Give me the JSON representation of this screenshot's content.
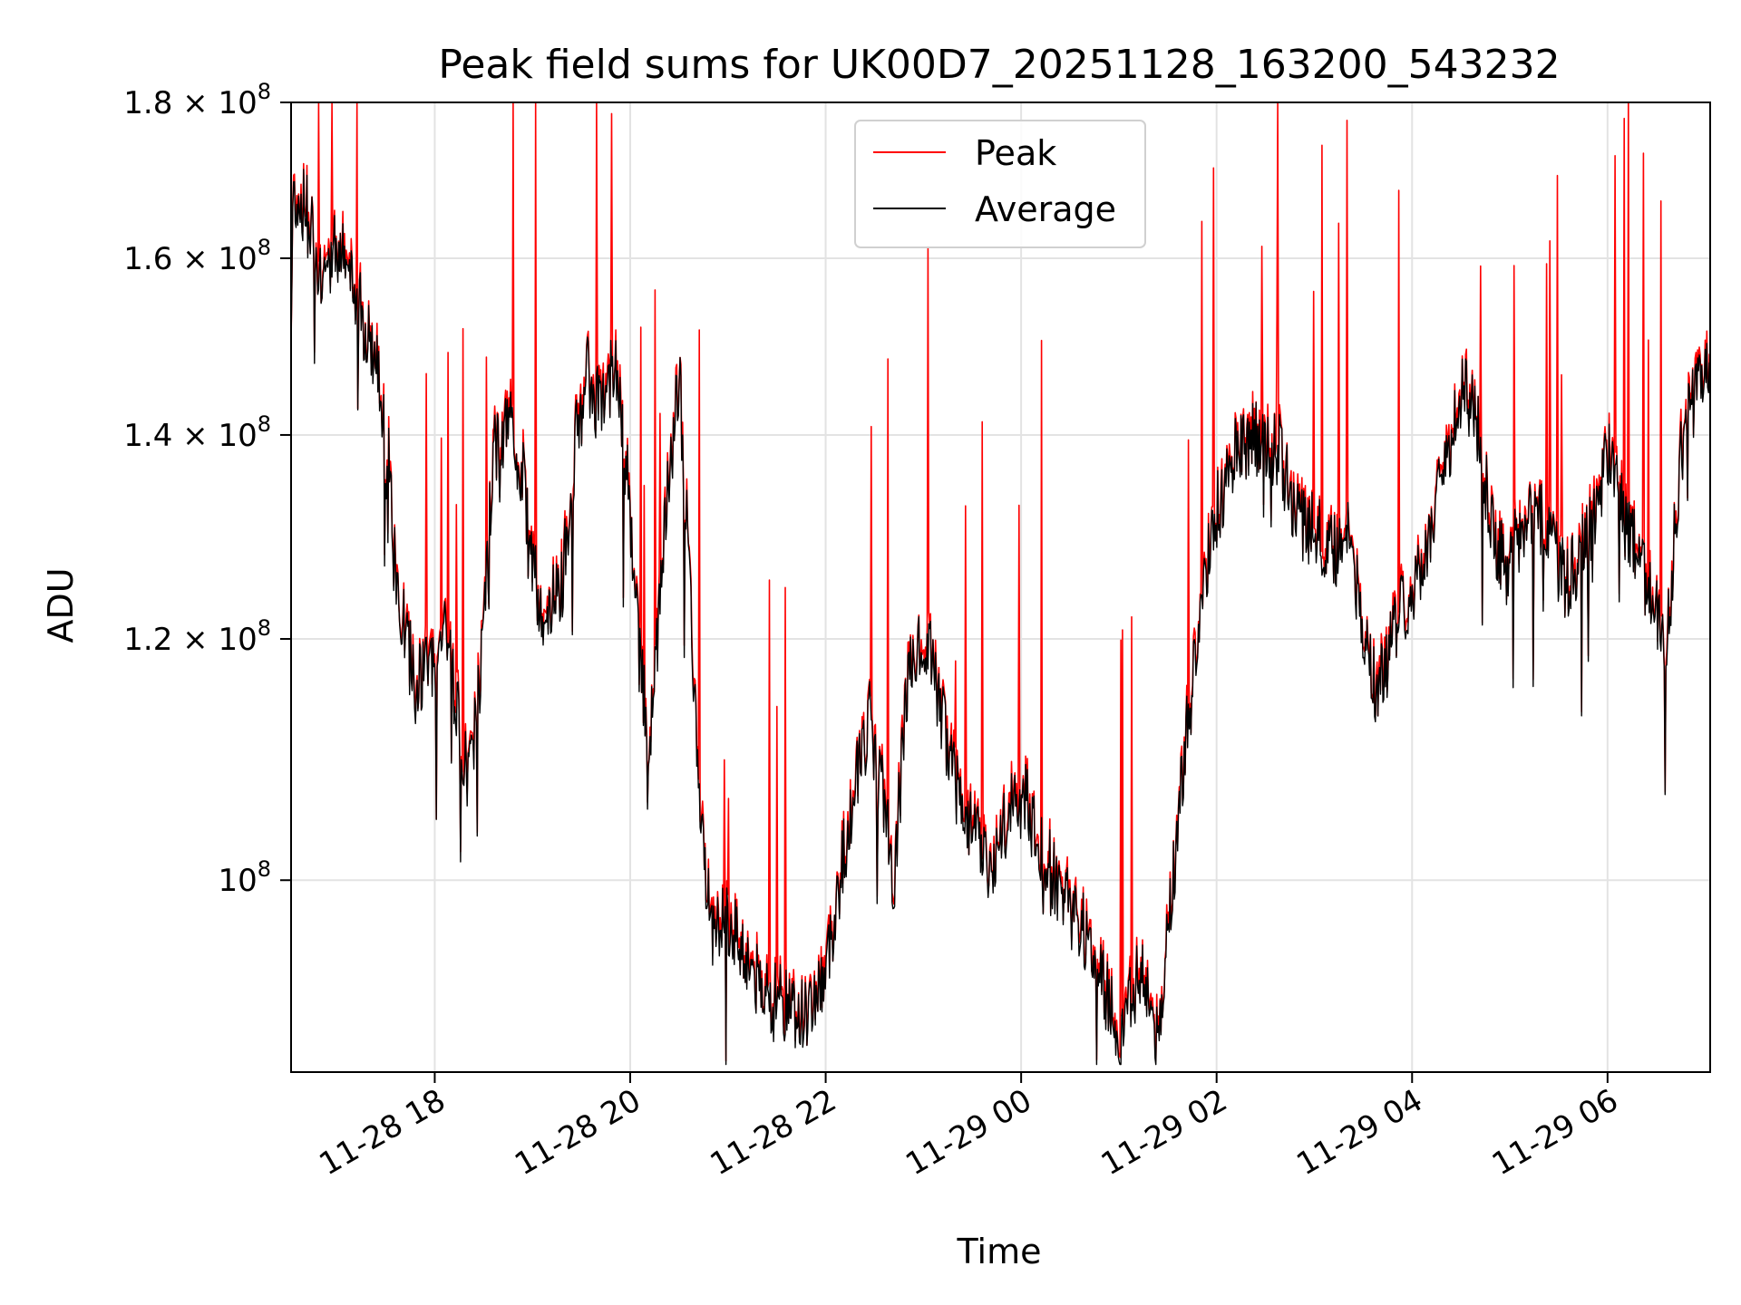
{
  "chart_data": {
    "type": "line",
    "title": "Peak field sums for UK00D7_20251128_163200_543232",
    "xlabel": "Time",
    "ylabel": "ADU",
    "yscale": "log",
    "ylim": [
      86500000,
      180000000
    ],
    "xlim_hours": [
      16.53,
      31.05
    ],
    "grid": true,
    "legend": {
      "location": "upper-center",
      "entries": [
        "Peak",
        "Average"
      ]
    },
    "colors": {
      "Peak": "#ff0000",
      "Average": "#000000"
    },
    "x_ticks": [
      {
        "hour": 18,
        "label": "11-28 18"
      },
      {
        "hour": 20,
        "label": "11-28 20"
      },
      {
        "hour": 22,
        "label": "11-28 22"
      },
      {
        "hour": 24,
        "label": "11-29 00"
      },
      {
        "hour": 26,
        "label": "11-29 02"
      },
      {
        "hour": 28,
        "label": "11-29 04"
      },
      {
        "hour": 30,
        "label": "11-29 06"
      }
    ],
    "y_ticks": [
      {
        "value": 100000000,
        "base": "10",
        "exp": "8",
        "mult": ""
      },
      {
        "value": 120000000,
        "base": "10",
        "exp": "8",
        "mult": "1.2 × "
      },
      {
        "value": 140000000,
        "base": "10",
        "exp": "8",
        "mult": "1.4 × "
      },
      {
        "value": 160000000,
        "base": "10",
        "exp": "8",
        "mult": "1.6 × "
      },
      {
        "value": 180000000,
        "base": "10",
        "exp": "8",
        "mult": "1.8 × "
      }
    ],
    "average_keypoints": [
      [
        16.53,
        150
      ],
      [
        16.55,
        168
      ],
      [
        16.7,
        166
      ],
      [
        16.85,
        158
      ],
      [
        17.0,
        162
      ],
      [
        17.2,
        155
      ],
      [
        17.35,
        150
      ],
      [
        17.5,
        142
      ],
      [
        17.6,
        125
      ],
      [
        17.8,
        116
      ],
      [
        18.0,
        118
      ],
      [
        18.1,
        122
      ],
      [
        18.2,
        115
      ],
      [
        18.35,
        108
      ],
      [
        18.5,
        120
      ],
      [
        18.6,
        138
      ],
      [
        18.75,
        142
      ],
      [
        18.9,
        136
      ],
      [
        19.0,
        128
      ],
      [
        19.1,
        122
      ],
      [
        19.3,
        125
      ],
      [
        19.45,
        140
      ],
      [
        19.55,
        147
      ],
      [
        19.7,
        142
      ],
      [
        19.85,
        148
      ],
      [
        20.0,
        132
      ],
      [
        20.1,
        118
      ],
      [
        20.2,
        110
      ],
      [
        20.35,
        130
      ],
      [
        20.5,
        146
      ],
      [
        20.6,
        128
      ],
      [
        20.7,
        105
      ],
      [
        20.85,
        96
      ],
      [
        21.0,
        97
      ],
      [
        21.2,
        94
      ],
      [
        21.4,
        92
      ],
      [
        21.6,
        91
      ],
      [
        21.8,
        90
      ],
      [
        22.0,
        93
      ],
      [
        22.15,
        100
      ],
      [
        22.3,
        108
      ],
      [
        22.45,
        113
      ],
      [
        22.6,
        106
      ],
      [
        22.7,
        100
      ],
      [
        22.85,
        118
      ],
      [
        23.0,
        121
      ],
      [
        23.15,
        115
      ],
      [
        23.3,
        108
      ],
      [
        23.5,
        104
      ],
      [
        23.65,
        101
      ],
      [
        23.8,
        103
      ],
      [
        23.9,
        106
      ],
      [
        24.05,
        106
      ],
      [
        24.2,
        103
      ],
      [
        24.35,
        100
      ],
      [
        24.5,
        98
      ],
      [
        24.65,
        96
      ],
      [
        24.8,
        93
      ],
      [
        25.0,
        89
      ],
      [
        25.1,
        92
      ],
      [
        25.25,
        93
      ],
      [
        25.4,
        88
      ],
      [
        25.55,
        100
      ],
      [
        25.7,
        112
      ],
      [
        25.9,
        127
      ],
      [
        26.0,
        132
      ],
      [
        26.2,
        139
      ],
      [
        26.45,
        140
      ],
      [
        26.65,
        138
      ],
      [
        26.8,
        132
      ],
      [
        27.0,
        130
      ],
      [
        27.2,
        128
      ],
      [
        27.35,
        130
      ],
      [
        27.5,
        120
      ],
      [
        27.65,
        115
      ],
      [
        27.8,
        120
      ],
      [
        28.0,
        125
      ],
      [
        28.2,
        130
      ],
      [
        28.35,
        138
      ],
      [
        28.5,
        145
      ],
      [
        28.65,
        142
      ],
      [
        28.8,
        132
      ],
      [
        28.95,
        126
      ],
      [
        29.1,
        130
      ],
      [
        29.25,
        133
      ],
      [
        29.45,
        128
      ],
      [
        29.6,
        125
      ],
      [
        29.8,
        130
      ],
      [
        30.0,
        138
      ],
      [
        30.15,
        132
      ],
      [
        30.3,
        128
      ],
      [
        30.45,
        124
      ],
      [
        30.6,
        118
      ],
      [
        30.75,
        138
      ],
      [
        30.9,
        145
      ],
      [
        31.05,
        147
      ]
    ]
  }
}
